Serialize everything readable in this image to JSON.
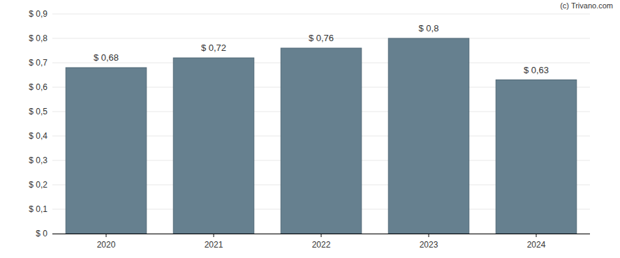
{
  "chart_data": {
    "type": "bar",
    "annotations": [
      "(c) Trivano.com"
    ],
    "categories": [
      "2020",
      "2021",
      "2022",
      "2023",
      "2024"
    ],
    "values": [
      0.68,
      0.72,
      0.76,
      0.8,
      0.63
    ],
    "value_labels": [
      "$ 0,68",
      "$ 0,72",
      "$ 0,76",
      "$ 0,8",
      "$ 0,63"
    ],
    "data_labels": true,
    "color": "#66808f",
    "ylim": [
      0,
      0.9
    ],
    "yticks": [
      {
        "value": 0,
        "label": "$ 0"
      },
      {
        "value": 0.1,
        "label": "$ 0,1"
      },
      {
        "value": 0.2,
        "label": "$ 0,2"
      },
      {
        "value": 0.3,
        "label": "$ 0,3"
      },
      {
        "value": 0.4,
        "label": "$ 0,4"
      },
      {
        "value": 0.5,
        "label": "$ 0,5"
      },
      {
        "value": 0.6,
        "label": "$ 0,6"
      },
      {
        "value": 0.7,
        "label": "$ 0,7"
      },
      {
        "value": 0.8,
        "label": "$ 0,8"
      },
      {
        "value": 0.9,
        "label": "$ 0,9"
      }
    ],
    "grid": true
  }
}
